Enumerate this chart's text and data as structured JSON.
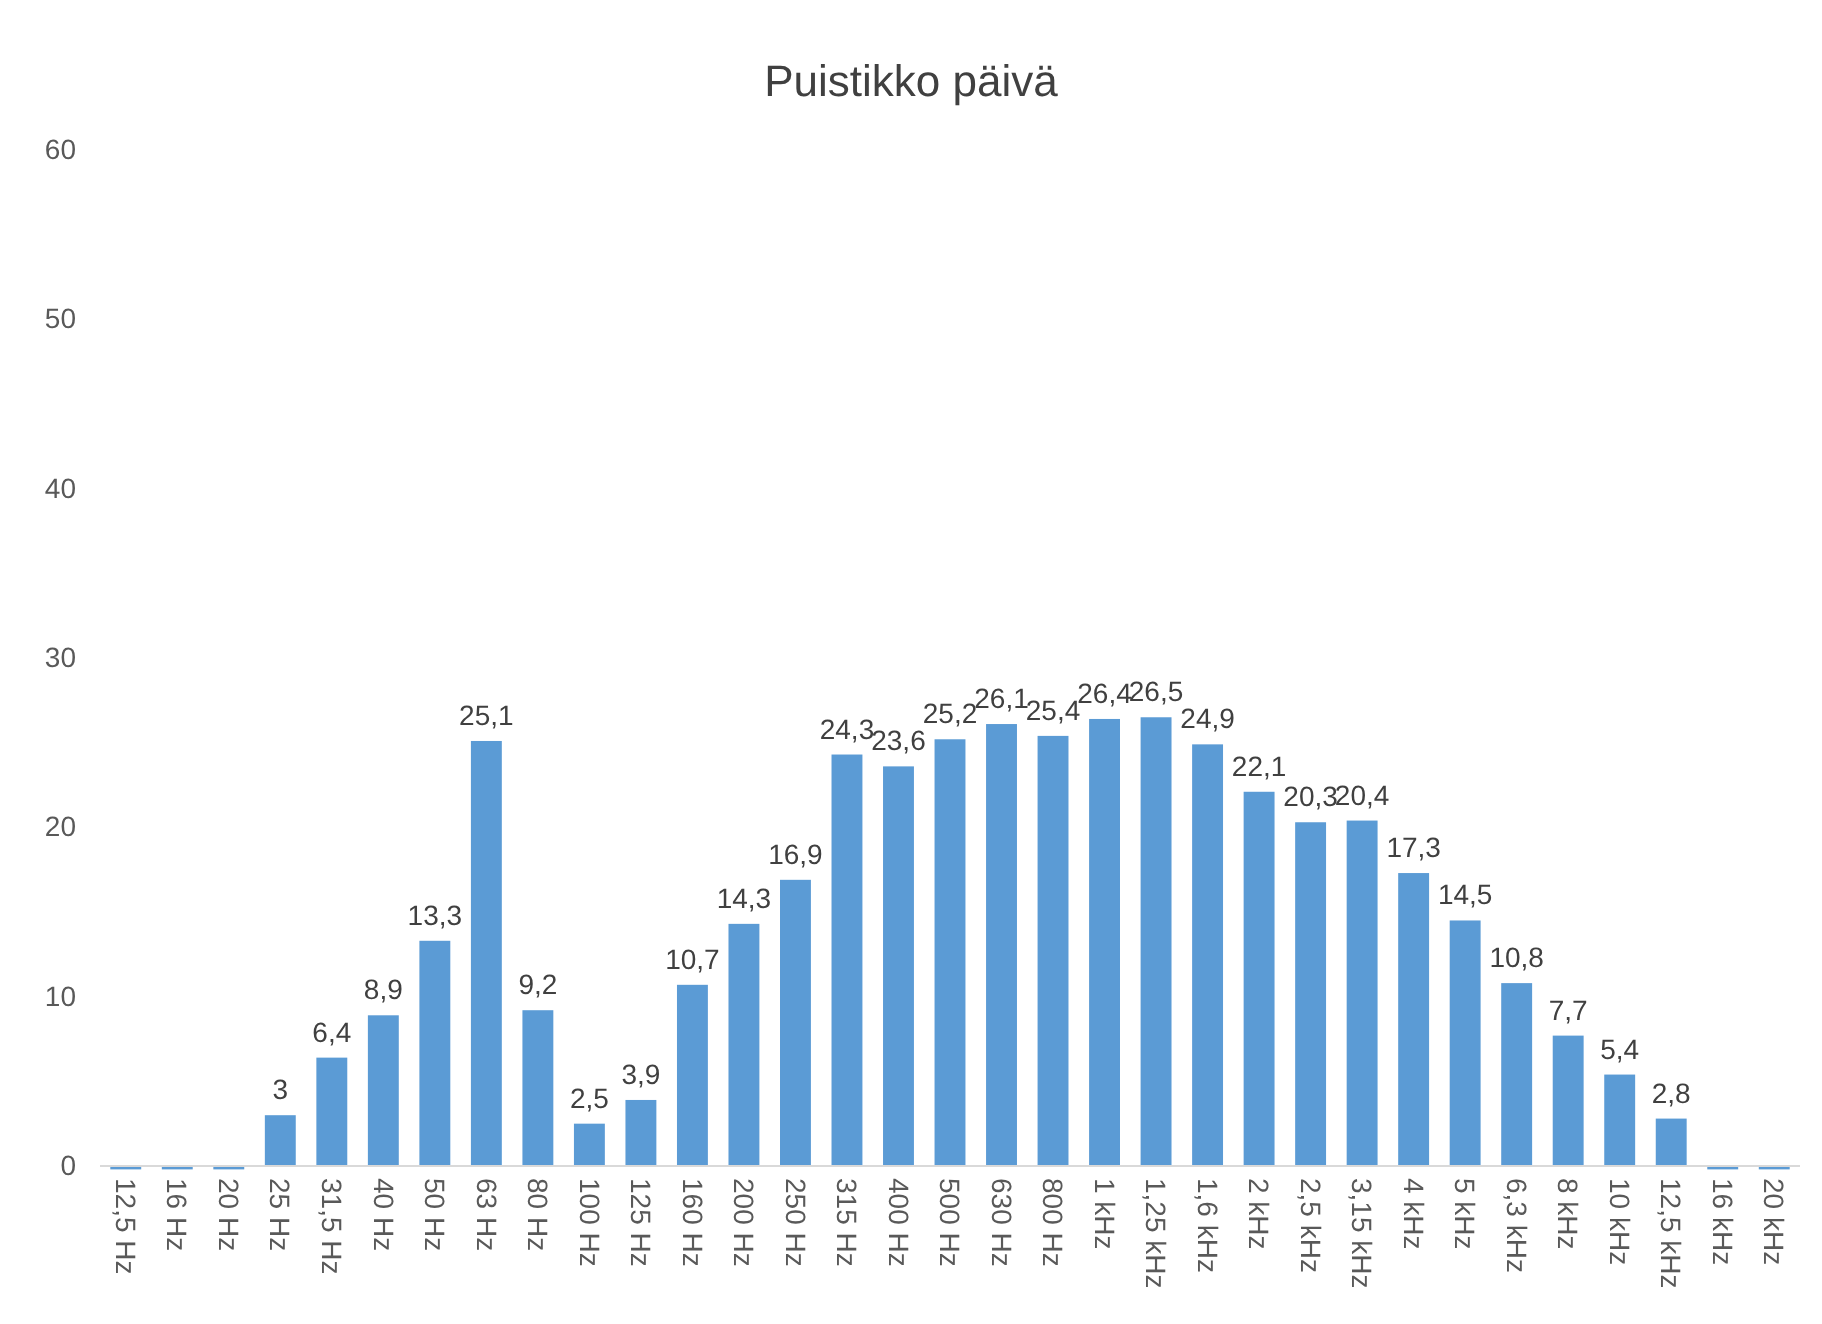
{
  "chart_data": {
    "type": "bar",
    "title": "Puistikko päivä",
    "categories": [
      "12,5 Hz",
      "16 Hz",
      "20 Hz",
      "25 Hz",
      "31,5 Hz",
      "40 Hz",
      "50 Hz",
      "63 Hz",
      "80 Hz",
      "100 Hz",
      "125 Hz",
      "160 Hz",
      "200 Hz",
      "250 Hz",
      "315 Hz",
      "400 Hz",
      "500 Hz",
      "630 Hz",
      "800 Hz",
      "1 kHz",
      "1,25 kHz",
      "1,6 kHz",
      "2 kHz",
      "2,5 kHz",
      "3,15 kHz",
      "4 kHz",
      "5 kHz",
      "6,3 kHz",
      "8 kHz",
      "10 kHz",
      "12,5 kHz",
      "16 kHz",
      "20 kHz"
    ],
    "values": [
      -0.2,
      -0.2,
      -0.2,
      3,
      6.4,
      8.9,
      13.3,
      25.1,
      9.2,
      2.5,
      3.9,
      10.7,
      14.3,
      16.9,
      24.3,
      23.6,
      25.2,
      26.1,
      25.4,
      26.4,
      26.5,
      24.9,
      22.1,
      20.3,
      20.4,
      17.3,
      14.5,
      10.8,
      7.7,
      5.4,
      2.8,
      -0.2,
      -0.2
    ],
    "value_labels": [
      null,
      null,
      null,
      "3",
      "6,4",
      "8,9",
      "13,3",
      "25,1",
      "9,2",
      "2,5",
      "3,9",
      "10,7",
      "14,3",
      "16,9",
      "24,3",
      "23,6",
      "25,2",
      "26,1",
      "25,4",
      "26,4",
      "26,5",
      "24,9",
      "22,1",
      "20,3",
      "20,4",
      "17,3",
      "14,5",
      "10,8",
      "7,7",
      "5,4",
      "2,8",
      null,
      null
    ],
    "color": "#5b9bd5",
    "ylim": [
      -0.3,
      60
    ],
    "yticks": [
      0,
      10,
      20,
      30,
      40,
      50,
      60
    ],
    "grid": false
  }
}
